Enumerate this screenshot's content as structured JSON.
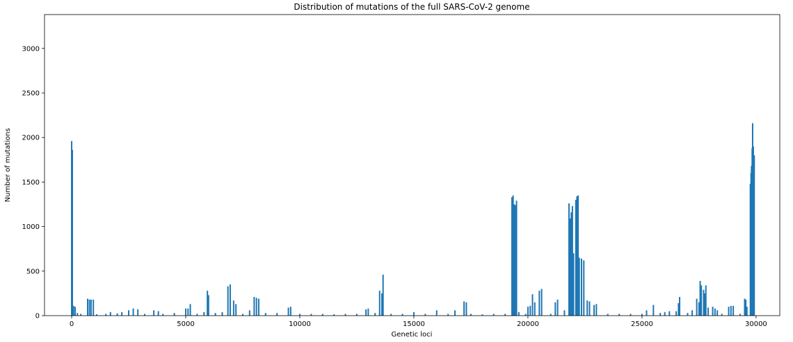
{
  "chart_data": {
    "type": "bar",
    "title": "Distribution of mutations of the full SARS-CoV-2 genome",
    "x_label": "Genetic loci",
    "y_label": "Number of mutations",
    "color": "#1f77b4",
    "xlim": [
      -1190,
      31040
    ],
    "ylim": [
      0,
      3380
    ],
    "xticks": [
      0,
      5000,
      10000,
      15000,
      20000,
      25000,
      30000
    ],
    "yticks": [
      0,
      500,
      1000,
      1500,
      2000,
      2500,
      3000
    ],
    "x": [
      0,
      30,
      80,
      150,
      250,
      400,
      700,
      780,
      850,
      950,
      1100,
      1500,
      1700,
      2000,
      2200,
      2500,
      2700,
      2900,
      3200,
      3600,
      3800,
      4000,
      4500,
      5000,
      5100,
      5200,
      5500,
      5800,
      5950,
      6000,
      6300,
      6600,
      6850,
      6950,
      7100,
      7200,
      7500,
      7800,
      8000,
      8100,
      8200,
      8500,
      9000,
      9500,
      9600,
      10000,
      10500,
      11000,
      11500,
      12000,
      12500,
      12900,
      13000,
      13300,
      13500,
      13600,
      13650,
      14000,
      14500,
      15000,
      15500,
      16000,
      16500,
      16800,
      17200,
      17300,
      17500,
      18000,
      18500,
      19000,
      19300,
      19350,
      19400,
      19450,
      19500,
      19600,
      19900,
      20000,
      20100,
      20200,
      20300,
      20500,
      20600,
      21000,
      21200,
      21300,
      21600,
      21800,
      21850,
      21900,
      21950,
      22000,
      22100,
      22150,
      22200,
      22250,
      22350,
      22450,
      22600,
      22700,
      22900,
      23000,
      23500,
      24000,
      24500,
      25000,
      25200,
      25500,
      25800,
      26000,
      26200,
      26500,
      26600,
      26650,
      27000,
      27200,
      27400,
      27500,
      27550,
      27600,
      27700,
      27750,
      27800,
      27900,
      28100,
      28200,
      28300,
      28500,
      28800,
      28900,
      29000,
      29300,
      29500,
      29550,
      29600,
      29750,
      29780,
      29800,
      29830,
      29850,
      29880,
      29920
    ],
    "values": [
      1960,
      1860,
      110,
      100,
      30,
      20,
      190,
      180,
      180,
      180,
      15,
      20,
      40,
      25,
      40,
      60,
      80,
      70,
      20,
      60,
      50,
      20,
      30,
      80,
      80,
      130,
      20,
      40,
      280,
      230,
      30,
      40,
      330,
      350,
      170,
      130,
      20,
      60,
      210,
      200,
      190,
      30,
      30,
      90,
      100,
      20,
      20,
      20,
      15,
      20,
      20,
      70,
      80,
      30,
      280,
      250,
      460,
      20,
      20,
      40,
      20,
      60,
      20,
      60,
      160,
      150,
      20,
      15,
      20,
      20,
      1330,
      1350,
      1250,
      1240,
      1290,
      40,
      20,
      100,
      110,
      240,
      150,
      280,
      300,
      20,
      150,
      180,
      60,
      1260,
      1090,
      1160,
      1230,
      700,
      1300,
      1340,
      1350,
      650,
      640,
      620,
      170,
      160,
      120,
      130,
      20,
      20,
      20,
      20,
      60,
      120,
      30,
      40,
      50,
      50,
      140,
      210,
      30,
      60,
      190,
      150,
      390,
      340,
      290,
      250,
      340,
      90,
      100,
      80,
      60,
      20,
      100,
      110,
      110,
      20,
      190,
      180,
      100,
      1480,
      1600,
      1680,
      1880,
      2160,
      1900,
      1800
    ]
  }
}
